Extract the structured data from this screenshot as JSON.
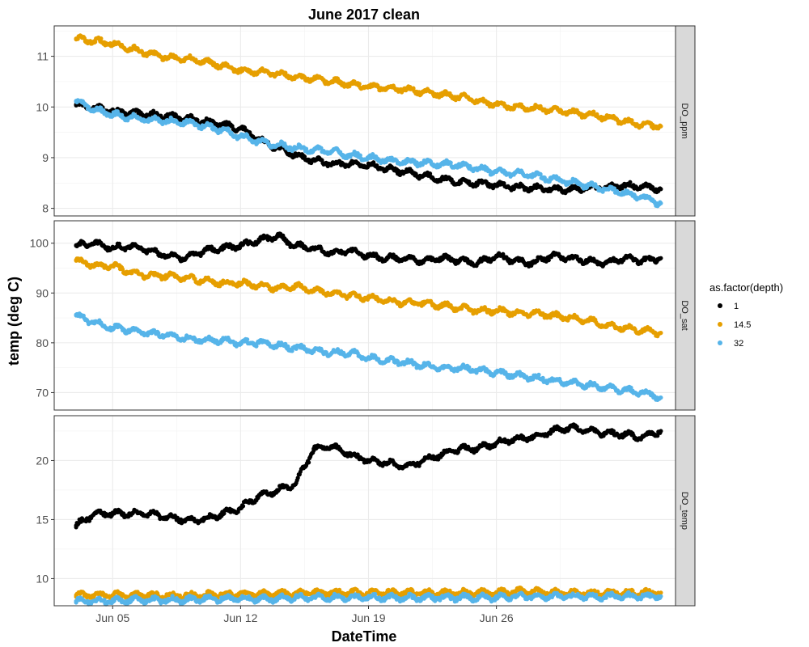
{
  "chart_data": {
    "type": "scatter",
    "title": "June 2017 clean",
    "xlabel": "DateTime",
    "ylabel": "temp (deg C)",
    "xlim": [
      -3.2,
      30.8
    ],
    "x_unit": "days since Jun 05 2017 00:00",
    "x_ticks": [
      {
        "value": 0,
        "label": "Jun 05"
      },
      {
        "value": 7,
        "label": "Jun 12"
      },
      {
        "value": 14,
        "label": "Jun 19"
      },
      {
        "value": 21,
        "label": "Jun 26"
      }
    ],
    "legend": {
      "title": "as.factor(depth)",
      "placement": "right",
      "entries": [
        {
          "label": "1",
          "color": "#000000"
        },
        {
          "label": "14.5",
          "color": "#E69F00"
        },
        {
          "label": "32",
          "color": "#56B4E9"
        }
      ]
    },
    "panels": [
      {
        "strip": "DO_ppm",
        "ylim": [
          7.85,
          11.6
        ],
        "y_ticks": [
          8,
          9,
          10,
          11
        ],
        "series": [
          {
            "name": "1",
            "color": "#000000",
            "x": [
              -2,
              -1,
              0,
              1,
              2,
              3,
              4,
              5,
              6,
              7,
              8,
              9,
              10,
              11,
              12,
              13,
              14,
              15,
              16,
              17,
              18,
              19,
              20,
              21,
              22,
              23,
              24,
              25,
              26,
              27,
              28,
              29,
              30
            ],
            "y": [
              10.05,
              9.98,
              9.92,
              9.88,
              9.85,
              9.82,
              9.78,
              9.72,
              9.65,
              9.58,
              9.35,
              9.2,
              9.05,
              8.95,
              8.88,
              8.88,
              8.85,
              8.78,
              8.72,
              8.65,
              8.58,
              8.52,
              8.5,
              8.46,
              8.42,
              8.4,
              8.38,
              8.38,
              8.4,
              8.42,
              8.45,
              8.42,
              8.38
            ]
          },
          {
            "name": "14.5",
            "color": "#E69F00",
            "x": [
              -2,
              -1,
              0,
              1,
              2,
              3,
              4,
              5,
              6,
              7,
              8,
              9,
              10,
              11,
              12,
              13,
              14,
              15,
              16,
              17,
              18,
              19,
              20,
              21,
              22,
              23,
              24,
              25,
              26,
              27,
              28,
              29,
              30
            ],
            "y": [
              11.35,
              11.3,
              11.25,
              11.15,
              11.05,
              10.98,
              10.95,
              10.9,
              10.82,
              10.72,
              10.7,
              10.65,
              10.6,
              10.55,
              10.5,
              10.45,
              10.4,
              10.38,
              10.35,
              10.3,
              10.25,
              10.2,
              10.12,
              10.05,
              10.0,
              9.98,
              9.95,
              9.9,
              9.85,
              9.8,
              9.72,
              9.65,
              9.62
            ]
          },
          {
            "name": "32",
            "color": "#56B4E9",
            "x": [
              -2,
              -1,
              0,
              1,
              2,
              3,
              4,
              5,
              6,
              7,
              8,
              9,
              10,
              11,
              12,
              13,
              14,
              15,
              16,
              17,
              18,
              19,
              20,
              21,
              22,
              23,
              24,
              25,
              26,
              27,
              28,
              29,
              30
            ],
            "y": [
              10.12,
              9.95,
              9.85,
              9.8,
              9.75,
              9.72,
              9.7,
              9.62,
              9.55,
              9.42,
              9.32,
              9.25,
              9.2,
              9.15,
              9.12,
              9.05,
              9.0,
              8.95,
              8.92,
              8.9,
              8.88,
              8.85,
              8.78,
              8.72,
              8.7,
              8.65,
              8.58,
              8.52,
              8.45,
              8.38,
              8.3,
              8.22,
              8.1
            ]
          }
        ]
      },
      {
        "strip": "DO_sat",
        "ylim": [
          66.5,
          104.5
        ],
        "y_ticks": [
          70,
          80,
          90,
          100
        ],
        "series": [
          {
            "name": "1",
            "color": "#000000",
            "x": [
              -2,
              -1,
              0,
              1,
              2,
              3,
              4,
              5,
              6,
              7,
              8,
              9,
              10,
              11,
              12,
              13,
              14,
              15,
              16,
              17,
              18,
              19,
              20,
              21,
              22,
              23,
              24,
              25,
              26,
              27,
              28,
              29,
              30
            ],
            "y": [
              99.5,
              100.0,
              99.0,
              99.5,
              98.5,
              97.5,
              97.0,
              98.5,
              99.0,
              99.5,
              100.5,
              101.5,
              99.5,
              99.0,
              98.0,
              98.5,
              97.5,
              97.0,
              97.0,
              96.5,
              97.0,
              96.5,
              96.0,
              97.5,
              96.5,
              96.0,
              97.5,
              97.0,
              96.5,
              96.0,
              97.0,
              96.5,
              97.0
            ]
          },
          {
            "name": "14.5",
            "color": "#E69F00",
            "x": [
              -2,
              -1,
              0,
              1,
              2,
              3,
              4,
              5,
              6,
              7,
              8,
              9,
              10,
              11,
              12,
              13,
              14,
              15,
              16,
              17,
              18,
              19,
              20,
              21,
              22,
              23,
              24,
              25,
              26,
              27,
              28,
              29,
              30
            ],
            "y": [
              96.5,
              95.5,
              95.5,
              94.0,
              93.5,
              93.5,
              93.0,
              92.5,
              92.0,
              92.0,
              91.5,
              91.0,
              91.5,
              90.5,
              90.0,
              89.5,
              89.0,
              88.5,
              88.0,
              88.0,
              87.5,
              87.0,
              86.5,
              86.5,
              86.0,
              86.0,
              85.5,
              85.0,
              84.5,
              83.5,
              83.0,
              82.5,
              82.0
            ]
          },
          {
            "name": "32",
            "color": "#56B4E9",
            "x": [
              -2,
              -1,
              0,
              1,
              2,
              3,
              4,
              5,
              6,
              7,
              8,
              9,
              10,
              11,
              12,
              13,
              14,
              15,
              16,
              17,
              18,
              19,
              20,
              21,
              22,
              23,
              24,
              25,
              26,
              27,
              28,
              29,
              30
            ],
            "y": [
              85.5,
              84.0,
              83.0,
              82.5,
              82.0,
              81.5,
              81.0,
              80.5,
              80.5,
              80.0,
              80.0,
              79.5,
              79.0,
              78.5,
              78.0,
              78.0,
              77.0,
              76.5,
              76.0,
              75.5,
              75.0,
              75.0,
              74.5,
              74.0,
              73.5,
              73.0,
              72.5,
              72.0,
              71.5,
              71.0,
              70.5,
              70.0,
              69.0
            ]
          }
        ]
      },
      {
        "strip": "DO_temp",
        "ylim": [
          7.7,
          23.8
        ],
        "y_ticks": [
          10,
          15,
          20
        ],
        "series": [
          {
            "name": "1",
            "color": "#000000",
            "x": [
              -2,
              -1,
              0,
              1,
              2,
              3,
              4,
              5,
              6,
              7,
              8,
              9,
              10,
              11,
              12,
              13,
              14,
              15,
              16,
              17,
              18,
              19,
              20,
              21,
              22,
              23,
              24,
              25,
              26,
              27,
              28,
              29,
              30
            ],
            "y": [
              14.5,
              15.5,
              15.5,
              15.5,
              15.5,
              15.2,
              15.0,
              15.0,
              15.5,
              16.0,
              17.0,
              17.5,
              18.0,
              21.0,
              21.2,
              20.5,
              20.0,
              19.8,
              19.5,
              20.0,
              20.5,
              21.0,
              21.0,
              21.5,
              21.8,
              22.0,
              22.5,
              22.8,
              22.5,
              22.3,
              22.2,
              22.0,
              22.5
            ]
          },
          {
            "name": "14.5",
            "color": "#E69F00",
            "x": [
              -2,
              -1,
              0,
              1,
              2,
              3,
              4,
              5,
              6,
              7,
              8,
              9,
              10,
              11,
              12,
              13,
              14,
              15,
              16,
              17,
              18,
              19,
              20,
              21,
              22,
              23,
              24,
              25,
              26,
              27,
              28,
              29,
              30
            ],
            "y": [
              8.6,
              8.6,
              8.6,
              8.6,
              8.6,
              8.6,
              8.6,
              8.6,
              8.7,
              8.7,
              8.7,
              8.7,
              8.8,
              8.8,
              8.8,
              8.8,
              8.8,
              8.8,
              8.8,
              8.8,
              8.8,
              8.8,
              8.8,
              8.8,
              8.9,
              8.9,
              8.8,
              8.8,
              8.8,
              8.8,
              8.8,
              8.8,
              8.8
            ]
          },
          {
            "name": "32",
            "color": "#56B4E9",
            "x": [
              -2,
              -1,
              0,
              1,
              2,
              3,
              4,
              5,
              6,
              7,
              8,
              9,
              10,
              11,
              12,
              13,
              14,
              15,
              16,
              17,
              18,
              19,
              20,
              21,
              22,
              23,
              24,
              25,
              26,
              27,
              28,
              29,
              30
            ],
            "y": [
              8.1,
              8.1,
              8.1,
              8.2,
              8.2,
              8.2,
              8.2,
              8.3,
              8.3,
              8.3,
              8.3,
              8.3,
              8.4,
              8.4,
              8.4,
              8.4,
              8.4,
              8.4,
              8.4,
              8.4,
              8.4,
              8.4,
              8.4,
              8.4,
              8.5,
              8.5,
              8.5,
              8.5,
              8.5,
              8.5,
              8.5,
              8.5,
              8.5
            ]
          }
        ]
      }
    ]
  }
}
